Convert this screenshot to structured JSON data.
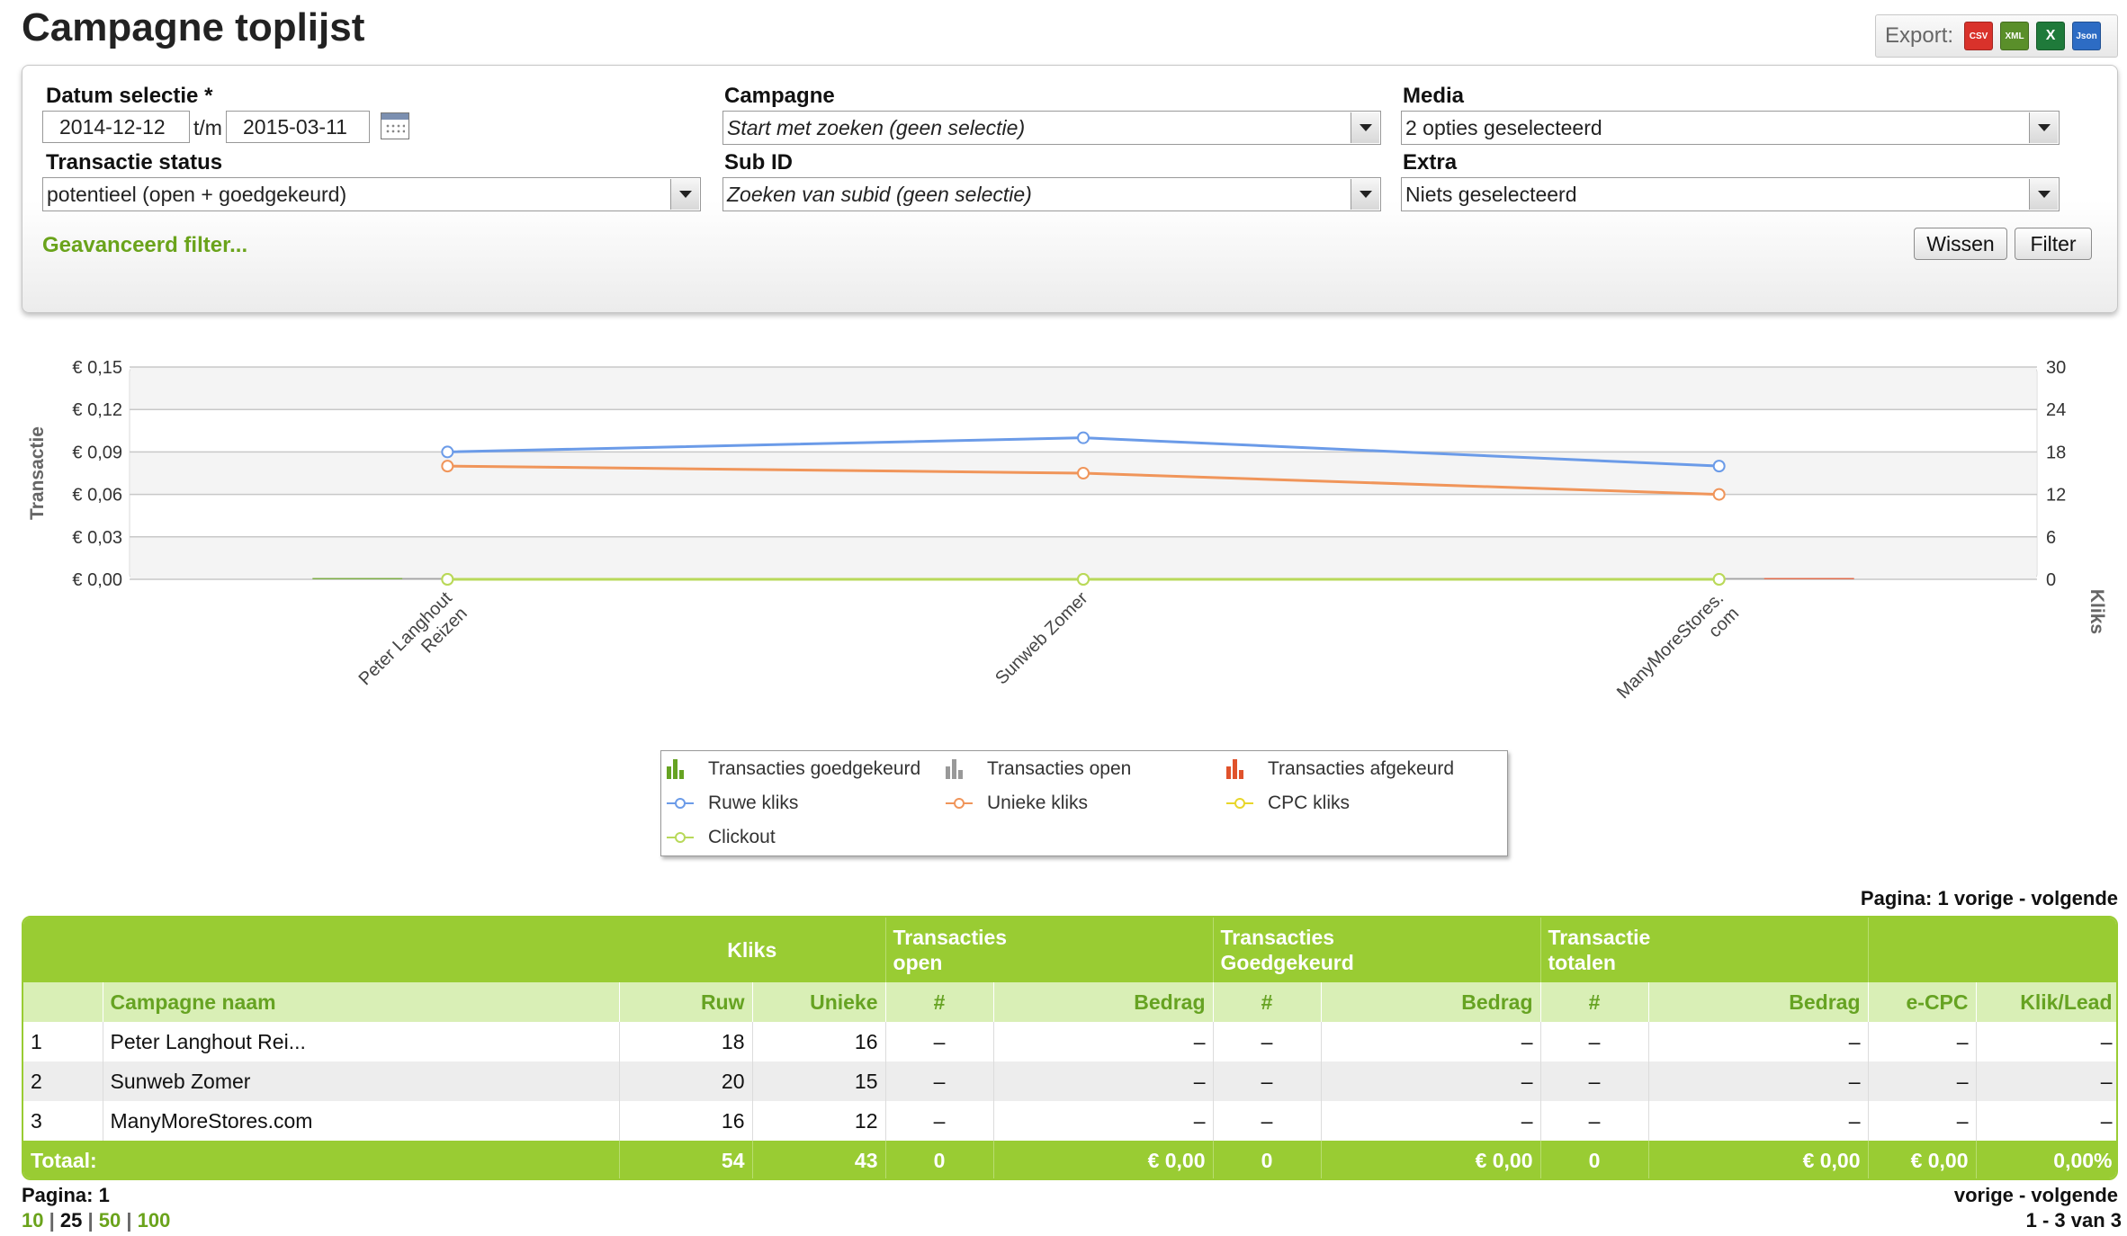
{
  "page": {
    "title": "Campagne toplijst"
  },
  "export": {
    "label": "Export:",
    "formats": [
      "CSV",
      "XML",
      "X",
      "Json"
    ],
    "colors": [
      "#d9322b",
      "#5a8f2a",
      "#1f7a3a",
      "#2d6cc4"
    ]
  },
  "filters": {
    "date": {
      "label": "Datum selectie *",
      "from": "2014-12-12",
      "separator": "t/m",
      "to": "2015-03-11"
    },
    "campaign": {
      "label": "Campagne",
      "value": "Start met zoeken (geen selectie)"
    },
    "media": {
      "label": "Media",
      "value": "2 opties geselecteerd"
    },
    "status": {
      "label": "Transactie status",
      "value": "potentieel (open + goedgekeurd)"
    },
    "subid": {
      "label": "Sub ID",
      "value": "Zoeken van subid (geen selectie)"
    },
    "extra": {
      "label": "Extra",
      "value": "Niets geselecteerd"
    },
    "advanced_link": "Geavanceerd filter...",
    "clear_button": "Wissen",
    "filter_button": "Filter"
  },
  "chart_data": {
    "type": "line",
    "categories": [
      "Peter Langhout Reizen",
      "Sunweb Zomer",
      "ManyMoreStores.com"
    ],
    "category_labels": [
      [
        "Peter Langhout",
        "Reizen"
      ],
      [
        "Sunweb Zomer"
      ],
      [
        "ManyMoreStores.",
        "com"
      ]
    ],
    "y_left": {
      "label": "Transactie",
      "ticks": [
        "€ 0,00",
        "€ 0,03",
        "€ 0,06",
        "€ 0,09",
        "€ 0,12",
        "€ 0,15"
      ],
      "range": [
        0,
        0.15
      ]
    },
    "y_right": {
      "label": "Kliks",
      "ticks": [
        "0",
        "6",
        "12",
        "18",
        "24",
        "30"
      ],
      "range": [
        0,
        30
      ]
    },
    "series": [
      {
        "name": "Transacties goedgekeurd",
        "kind": "bar",
        "axis": "left",
        "values": [
          0,
          0,
          0
        ],
        "color": "#66a322"
      },
      {
        "name": "Transacties open",
        "kind": "bar",
        "axis": "left",
        "values": [
          0,
          0,
          0
        ],
        "color": "#999999"
      },
      {
        "name": "Transacties afgekeurd",
        "kind": "bar",
        "axis": "left",
        "values": [
          0,
          0,
          0
        ],
        "color": "#e0522b"
      },
      {
        "name": "Ruwe kliks",
        "kind": "line",
        "axis": "right",
        "values": [
          18,
          20,
          16
        ],
        "color": "#6b9be8"
      },
      {
        "name": "Unieke kliks",
        "kind": "line",
        "axis": "right",
        "values": [
          16,
          15,
          12
        ],
        "color": "#f0955a"
      },
      {
        "name": "CPC kliks",
        "kind": "line",
        "axis": "right",
        "values": [
          0,
          0,
          0
        ],
        "color": "#e8d62a"
      },
      {
        "name": "Clickout",
        "kind": "line",
        "axis": "right",
        "values": [
          0,
          0,
          0
        ],
        "color": "#b8d95a"
      }
    ],
    "grid": true,
    "legend": "bottom-center"
  },
  "pagination": {
    "top": "Pagina: 1  vorige - volgende",
    "left": "Pagina: 1",
    "right": "vorige - volgende",
    "sizes": [
      "10",
      "25",
      "50",
      "100"
    ],
    "separator": "|",
    "range": "1 - 3 van 3"
  },
  "table": {
    "groups": {
      "kliks": "Kliks",
      "open": "Transacties open",
      "goed": "Transacties Goedgekeurd",
      "totalen": "Transactie totalen"
    },
    "headers": {
      "name": "Campagne naam",
      "ruw": "Ruw",
      "unieke": "Unieke",
      "open_count": "#",
      "open_amount": "Bedrag",
      "goed_count": "#",
      "goed_amount": "Bedrag",
      "tot_count": "#",
      "tot_amount": "Bedrag",
      "ecpc": "e-CPC",
      "kliklead": "Klik/Lead"
    },
    "rows": [
      {
        "idx": "1",
        "name": "Peter Langhout Rei...",
        "ruw": "18",
        "unieke": "16",
        "open_count": "–",
        "open_amount": "–",
        "goed_count": "–",
        "goed_amount": "–",
        "tot_count": "–",
        "tot_amount": "–",
        "ecpc": "–",
        "kliklead": "–"
      },
      {
        "idx": "2",
        "name": "Sunweb Zomer",
        "ruw": "20",
        "unieke": "15",
        "open_count": "–",
        "open_amount": "–",
        "goed_count": "–",
        "goed_amount": "–",
        "tot_count": "–",
        "tot_amount": "–",
        "ecpc": "–",
        "kliklead": "–"
      },
      {
        "idx": "3",
        "name": "ManyMoreStores.com",
        "ruw": "16",
        "unieke": "12",
        "open_count": "–",
        "open_amount": "–",
        "goed_count": "–",
        "goed_amount": "–",
        "tot_count": "–",
        "tot_amount": "–",
        "ecpc": "–",
        "kliklead": "–"
      }
    ],
    "total": {
      "label": "Totaal:",
      "ruw": "54",
      "unieke": "43",
      "open_count": "0",
      "open_amount": "€ 0,00",
      "goed_count": "0",
      "goed_amount": "€ 0,00",
      "tot_count": "0",
      "tot_amount": "€ 0,00",
      "ecpc": "€ 0,00",
      "kliklead": "0,00%"
    }
  }
}
